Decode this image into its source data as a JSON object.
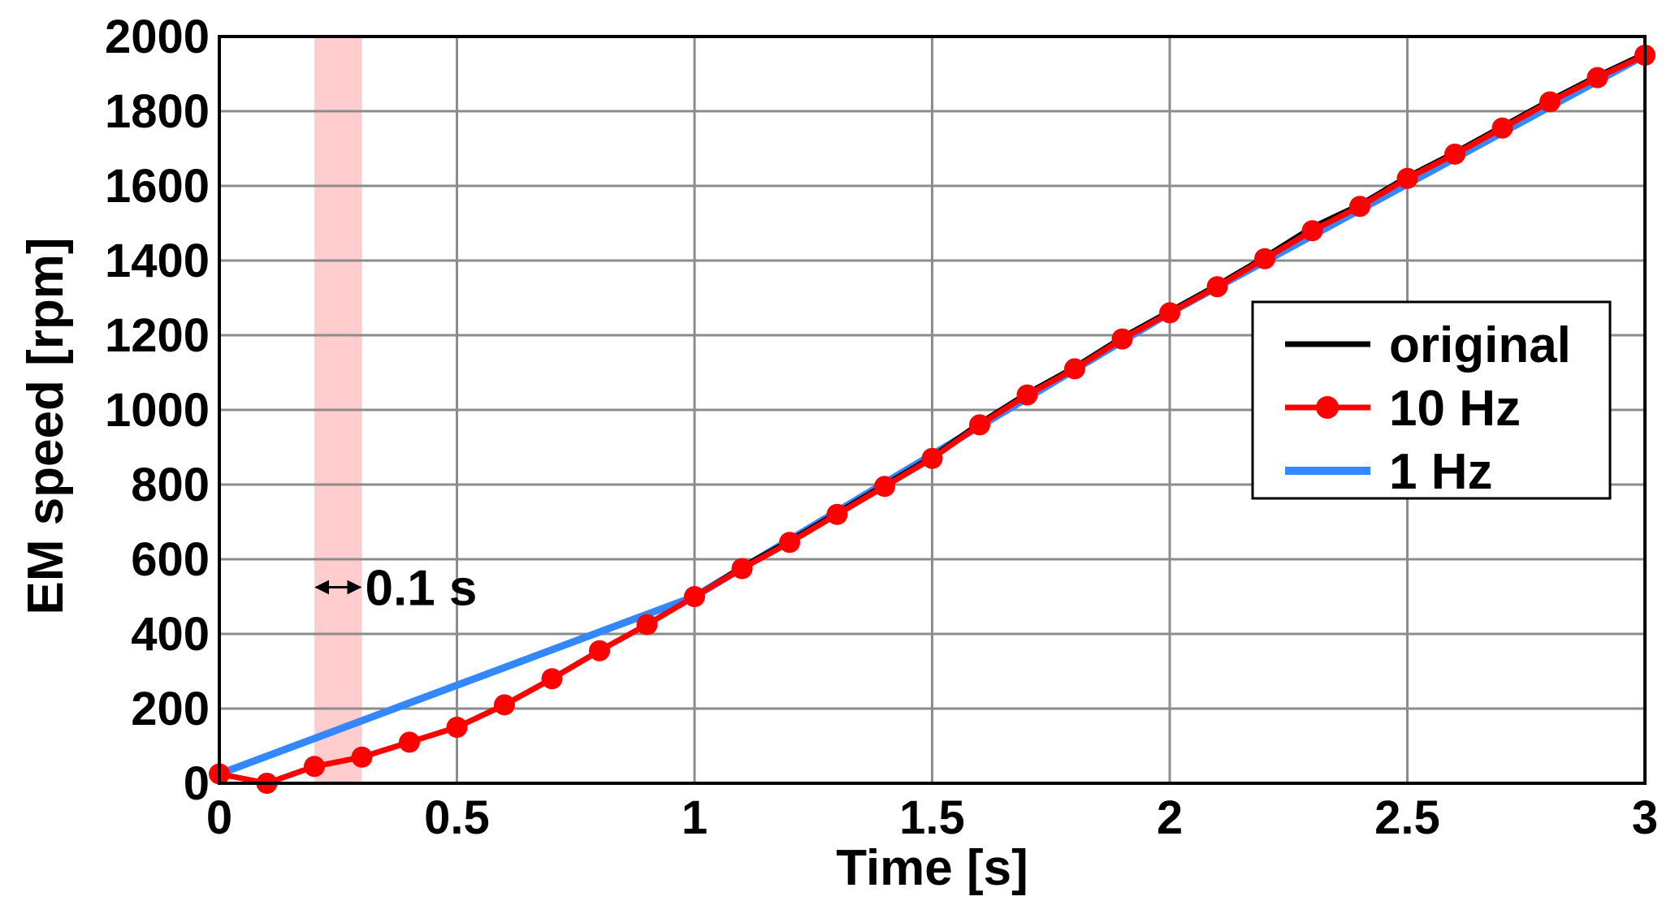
{
  "chart_data": {
    "type": "line",
    "xlabel": "Time [s]",
    "ylabel": "EM speed [rpm]",
    "xlim": [
      0,
      3
    ],
    "ylim": [
      0,
      2000
    ],
    "xticks": [
      {
        "value": 0,
        "label": "0"
      },
      {
        "value": 0.5,
        "label": "0.5"
      },
      {
        "value": 1,
        "label": "1"
      },
      {
        "value": 1.5,
        "label": "1.5"
      },
      {
        "value": 2,
        "label": "2"
      },
      {
        "value": 2.5,
        "label": "2.5"
      },
      {
        "value": 3,
        "label": "3"
      }
    ],
    "yticks": [
      {
        "value": 0,
        "label": "0"
      },
      {
        "value": 200,
        "label": "200"
      },
      {
        "value": 400,
        "label": "400"
      },
      {
        "value": 600,
        "label": "600"
      },
      {
        "value": 800,
        "label": "800"
      },
      {
        "value": 1000,
        "label": "1000"
      },
      {
        "value": 1200,
        "label": "1200"
      },
      {
        "value": 1400,
        "label": "1400"
      },
      {
        "value": 1600,
        "label": "1600"
      },
      {
        "value": 1800,
        "label": "1800"
      },
      {
        "value": 2000,
        "label": "2000"
      }
    ],
    "grid": true,
    "legend_position": "right",
    "series": [
      {
        "name": "original",
        "color": "#000000",
        "marker": "none",
        "x": [
          0,
          0.1,
          0.2,
          0.3,
          0.4,
          0.5,
          0.6,
          0.7,
          0.8,
          0.9,
          1.0,
          1.1,
          1.2,
          1.3,
          1.4,
          1.5,
          1.6,
          1.7,
          1.8,
          1.9,
          2.0,
          2.1,
          2.2,
          2.3,
          2.4,
          2.5,
          2.6,
          2.7,
          2.8,
          2.9,
          3.0
        ],
        "y": [
          25,
          0,
          45,
          70,
          110,
          150,
          210,
          280,
          355,
          425,
          500,
          580,
          650,
          725,
          800,
          875,
          965,
          1045,
          1115,
          1195,
          1265,
          1335,
          1410,
          1490,
          1550,
          1625,
          1690,
          1760,
          1830,
          1895,
          1955
        ]
      },
      {
        "name": "10 Hz",
        "color": "#ff0000",
        "marker": "circle",
        "x": [
          0,
          0.1,
          0.2,
          0.3,
          0.4,
          0.5,
          0.6,
          0.7,
          0.8,
          0.9,
          1.0,
          1.1,
          1.2,
          1.3,
          1.4,
          1.5,
          1.6,
          1.7,
          1.8,
          1.9,
          2.0,
          2.1,
          2.2,
          2.3,
          2.4,
          2.5,
          2.6,
          2.7,
          2.8,
          2.9,
          3.0
        ],
        "y": [
          25,
          0,
          45,
          70,
          110,
          150,
          210,
          280,
          355,
          425,
          500,
          575,
          645,
          720,
          795,
          870,
          960,
          1040,
          1110,
          1190,
          1260,
          1330,
          1405,
          1480,
          1545,
          1620,
          1685,
          1755,
          1825,
          1890,
          1950
        ]
      },
      {
        "name": "1 Hz",
        "color": "#3388ff",
        "marker": "none",
        "x": [
          0,
          1,
          2,
          3
        ],
        "y": [
          25,
          500,
          1260,
          1950
        ]
      }
    ],
    "annotations": [
      {
        "type": "shaded_band",
        "x_start": 0.2,
        "x_end": 0.3,
        "color": "#ffc8c8"
      },
      {
        "type": "double_arrow",
        "x_start": 0.2,
        "x_end": 0.3,
        "y": 525,
        "label": "0.1 s"
      }
    ]
  }
}
